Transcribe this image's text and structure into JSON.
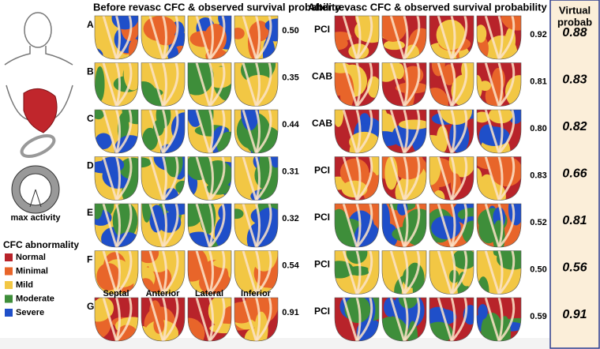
{
  "before": {
    "title": "Before revasc CFC & observed survival probability",
    "rows": [
      {
        "label": "A",
        "probability": "0.50"
      },
      {
        "label": "B",
        "probability": "0.35"
      },
      {
        "label": "C",
        "probability": "0.44"
      },
      {
        "label": "D",
        "probability": "0.31"
      },
      {
        "label": "E",
        "probability": "0.32"
      },
      {
        "label": "F",
        "probability": "0.54"
      },
      {
        "label": "G",
        "probability": "0.91"
      }
    ]
  },
  "after": {
    "title": "After revasc CFC & observed survival probability",
    "rows": [
      {
        "procedure": "PCI",
        "probability": "0.92"
      },
      {
        "procedure": "CAB",
        "probability": "0.81"
      },
      {
        "procedure": "CAB",
        "probability": "0.80"
      },
      {
        "procedure": "PCI",
        "probability": "0.83"
      },
      {
        "procedure": "PCI",
        "probability": "0.52"
      },
      {
        "procedure": "PCI",
        "probability": "0.50"
      },
      {
        "procedure": "PCI",
        "probability": "0.59"
      }
    ]
  },
  "virtual": {
    "title_line1": "Virtual",
    "title_line2": "probab",
    "values": [
      "0.88",
      "0.83",
      "0.82",
      "0.66",
      "0.81",
      "0.56",
      "0.91"
    ]
  },
  "legend": {
    "title": "CFC abnormality",
    "items": [
      {
        "label": "Normal",
        "color": "#b8232a"
      },
      {
        "label": "Minimal",
        "color": "#e8652a"
      },
      {
        "label": "Mild",
        "color": "#f2c744"
      },
      {
        "label": "Moderate",
        "color": "#3e8e3a"
      },
      {
        "label": "Severe",
        "color": "#1f4fc9"
      }
    ]
  },
  "views": [
    "Septal",
    "Anterior",
    "Lateral",
    "Inferior"
  ],
  "icon_label": "max activity"
}
